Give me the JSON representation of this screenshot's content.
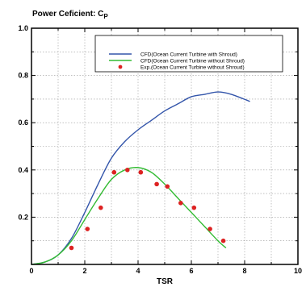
{
  "chart_data": {
    "type": "line",
    "title": "Power Ceficient: C",
    "title_subscript": "P",
    "xlabel": "TSR",
    "ylabel": "",
    "xlim": [
      0,
      10
    ],
    "ylim": [
      0,
      1.0
    ],
    "x_ticks": [
      "0",
      "2",
      "4",
      "6",
      "8",
      "10"
    ],
    "y_ticks": [
      "1.0",
      "0.8",
      "0.6",
      "0.4",
      "0.2"
    ],
    "grid": true,
    "legend_position": "top-right",
    "series": [
      {
        "name": "CFD(Ocean Current Turbine with Shroud)",
        "kind": "line",
        "color": "#3355aa",
        "x": [
          0,
          0.5,
          1.0,
          1.5,
          2.0,
          2.5,
          3.0,
          3.5,
          4.0,
          4.5,
          5.0,
          5.5,
          6.0,
          6.5,
          7.0,
          7.5,
          8.2
        ],
        "y": [
          0,
          0.01,
          0.04,
          0.11,
          0.22,
          0.34,
          0.45,
          0.52,
          0.57,
          0.61,
          0.65,
          0.68,
          0.71,
          0.72,
          0.73,
          0.72,
          0.69
        ]
      },
      {
        "name": "CFD(Ocean Current Turbine without Shroud)",
        "kind": "line",
        "color": "#33bb33",
        "x": [
          0,
          0.5,
          1.0,
          1.5,
          2.0,
          2.5,
          3.0,
          3.5,
          4.0,
          4.5,
          5.0,
          5.5,
          6.0,
          6.5,
          7.0,
          7.3
        ],
        "y": [
          0,
          0.01,
          0.04,
          0.1,
          0.19,
          0.28,
          0.36,
          0.4,
          0.41,
          0.39,
          0.34,
          0.28,
          0.22,
          0.16,
          0.1,
          0.07
        ]
      },
      {
        "name": "Exp.(Ocean Current Turbine without Shroud)",
        "kind": "scatter",
        "color": "#dd2222",
        "x": [
          1.5,
          2.1,
          2.6,
          3.1,
          3.6,
          4.1,
          4.7,
          5.1,
          5.6,
          6.1,
          6.7,
          7.2
        ],
        "y": [
          0.07,
          0.15,
          0.24,
          0.39,
          0.4,
          0.39,
          0.34,
          0.33,
          0.26,
          0.24,
          0.15,
          0.1
        ]
      }
    ]
  }
}
